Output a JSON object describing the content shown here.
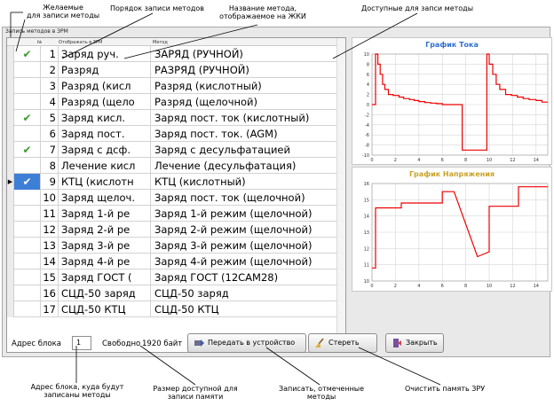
{
  "annotations": {
    "desired": [
      "Желаемые",
      "для записи методы"
    ],
    "order": [
      "Порядок записи методов"
    ],
    "lcd_name": [
      "Название метода,",
      "отображаемое на ЖКИ"
    ],
    "available": [
      "Доступные для запси методы"
    ],
    "address": [
      "Адрес блока, куда будут",
      "записаны методы"
    ],
    "size": [
      "Размер доступной для",
      "записи памяти"
    ],
    "write": [
      "Записать, отмеченные",
      "методы"
    ],
    "clear": [
      "Очистить память ЗРУ"
    ]
  },
  "window": {
    "title": "Запись методов в ЗРМ"
  },
  "grid": {
    "columns": {
      "num": "№",
      "display": "Отображать в ЗРМ",
      "method": "Метод"
    },
    "rows": [
      {
        "checked": true,
        "selected": false,
        "num": "1",
        "display": "Заряд руч.",
        "method": "ЗАРЯД (РУЧНОЙ)"
      },
      {
        "checked": false,
        "selected": false,
        "num": "2",
        "display": "Разряд",
        "method": "РАЗРЯД (РУЧНОЙ)"
      },
      {
        "checked": false,
        "selected": false,
        "num": "3",
        "display": "Разряд (кисл",
        "method": "Разряд (кислотный)"
      },
      {
        "checked": false,
        "selected": false,
        "num": "4",
        "display": "Разряд (щело",
        "method": "Разряд (щелочной)"
      },
      {
        "checked": true,
        "selected": false,
        "num": "5",
        "display": "Заряд кисл.",
        "method": "Заряд пост. ток (кислотный)"
      },
      {
        "checked": false,
        "selected": false,
        "num": "6",
        "display": "Заряд пост.",
        "method": "Заряд пост. ток. (AGM)"
      },
      {
        "checked": true,
        "selected": false,
        "num": "7",
        "display": "Заряд с дсф.",
        "method": "Заряд с десульфатацией"
      },
      {
        "checked": false,
        "selected": false,
        "num": "8",
        "display": "Лечение кисл",
        "method": "Лечение (десульфатация)"
      },
      {
        "checked": true,
        "selected": true,
        "num": "9",
        "display": "КТЦ (кислотн",
        "method": "КТЦ (кислотный)"
      },
      {
        "checked": false,
        "selected": false,
        "num": "10",
        "display": "Заряд щелоч.",
        "method": "Заряд пост. ток (щелочной)"
      },
      {
        "checked": false,
        "selected": false,
        "num": "11",
        "display": "Заряд 1-й ре",
        "method": "Заряд 1-й режим (щелочной)"
      },
      {
        "checked": false,
        "selected": false,
        "num": "12",
        "display": "Заряд 2-й ре",
        "method": "Заряд 2-й режим (щелочной)"
      },
      {
        "checked": false,
        "selected": false,
        "num": "13",
        "display": "Заряд 3-й ре",
        "method": "Заряд 3-й режим (щелочной)"
      },
      {
        "checked": false,
        "selected": false,
        "num": "14",
        "display": "Заряд 4-й ре",
        "method": "Заряд 4-й режим (щелочной)"
      },
      {
        "checked": false,
        "selected": false,
        "num": "15",
        "display": "Заряд ГОСТ (",
        "method": "Заряд ГОСТ (12САМ28)"
      },
      {
        "checked": false,
        "selected": false,
        "num": "16",
        "display": "СЦД-50 заряд",
        "method": "СЦД-50 заряд"
      },
      {
        "checked": false,
        "selected": false,
        "num": "17",
        "display": "СЦД-50 КТЦ",
        "method": "СЦД-50 КТЦ"
      }
    ]
  },
  "colors": {
    "current_title": "#2f6fd0",
    "voltage_title": "#c9a227",
    "trace": "#ee0000",
    "check": "#3a9a2e",
    "selection": "#3d7fd6"
  },
  "chart_data": [
    {
      "type": "line",
      "title": "График Тока",
      "xlabel": "",
      "ylabel": "",
      "xlim": [
        0,
        15
      ],
      "ylim": [
        -10,
        10
      ],
      "xticks": [
        0,
        2,
        4,
        6,
        8,
        10,
        12,
        14
      ],
      "yticks": [
        -10,
        -8,
        -6,
        -4,
        -2,
        0,
        2,
        4,
        6,
        8,
        10
      ],
      "grid": true,
      "series": [
        {
          "x": [
            0,
            0.3,
            0.3,
            0.5,
            0.5,
            0.7,
            0.7,
            0.9,
            0.9,
            1.1,
            1.1,
            1.4,
            1.4,
            1.8,
            1.8,
            2.3,
            2.3,
            2.7,
            2.7,
            3.2,
            3.2,
            3.6,
            3.6,
            4.0,
            4.0,
            4.5,
            4.5,
            5.0,
            5.0,
            5.5,
            5.5,
            6.0,
            6.0,
            7.0,
            7.0,
            7.7,
            7.7,
            9.8,
            9.8,
            10.0,
            10.0,
            10.3,
            10.3,
            10.6,
            10.6,
            10.9,
            10.9,
            11.4,
            11.4,
            11.9,
            11.9,
            12.4,
            12.4,
            12.9,
            12.9,
            13.4,
            13.4,
            14.0,
            14.0,
            14.5,
            14.5,
            15.0
          ],
          "y": [
            0,
            0,
            10,
            10,
            8,
            8,
            6,
            6,
            4,
            4,
            3,
            3,
            2,
            2,
            1.8,
            1.8,
            1.5,
            1.5,
            1.2,
            1.2,
            1.0,
            1.0,
            0.8,
            0.8,
            0.6,
            0.6,
            0.4,
            0.4,
            0.3,
            0.3,
            0.2,
            0.2,
            0,
            0,
            0,
            0,
            -9,
            -9,
            10,
            10,
            8,
            8,
            6,
            6,
            4,
            4,
            3,
            3,
            2,
            2,
            1.8,
            1.8,
            1.5,
            1.5,
            1.2,
            1.2,
            1.0,
            1.0,
            0.8,
            0.8,
            0.5,
            0.5
          ]
        }
      ]
    },
    {
      "type": "line",
      "title": "График Напряжения",
      "xlabel": "",
      "ylabel": "",
      "xlim": [
        0,
        15
      ],
      "ylim": [
        10,
        16
      ],
      "xticks": [
        0,
        2,
        4,
        6,
        8,
        10,
        12,
        14
      ],
      "yticks": [
        10,
        11,
        12,
        13,
        14,
        15,
        16
      ],
      "grid": true,
      "series": [
        {
          "x": [
            0,
            0.3,
            0.3,
            2.5,
            2.5,
            6.0,
            6.0,
            7.0,
            9.0,
            10.0,
            10.0,
            12.5,
            12.5,
            15.0
          ],
          "y": [
            10.8,
            10.8,
            14.5,
            14.5,
            14.8,
            14.8,
            15.5,
            15.5,
            11.5,
            11.8,
            14.6,
            14.6,
            15.8,
            15.8
          ]
        }
      ]
    }
  ],
  "bottom": {
    "address_label": "Адрес блока",
    "address_value": "1",
    "free_label": "Свободно",
    "free_value": "1920 байт",
    "send_button": "Передать в устройство",
    "clear_button": "Стереть",
    "close_button": "Закрыть"
  }
}
